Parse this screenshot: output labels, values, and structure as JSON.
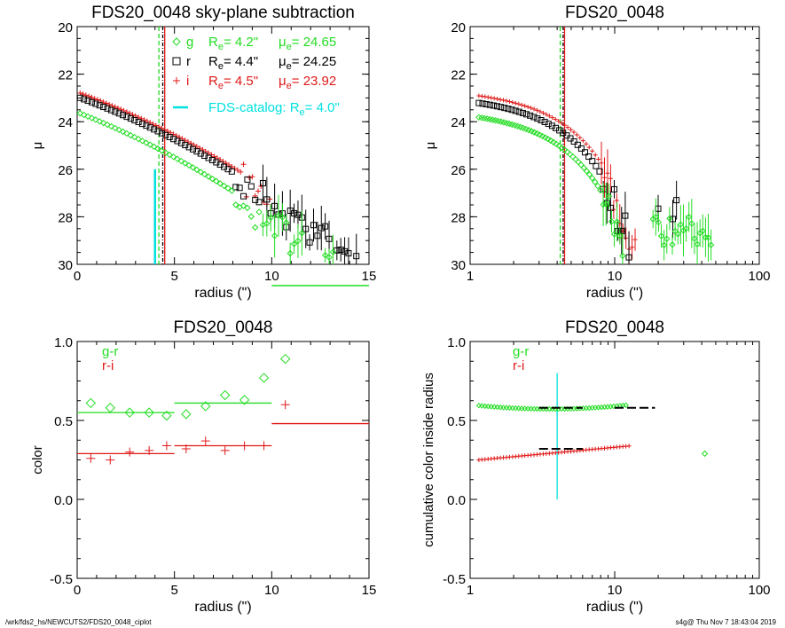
{
  "colors": {
    "g": "#22dd22",
    "r": "#000000",
    "i": "#e01818",
    "catalog": "#00e0e0",
    "axis": "#000000"
  },
  "footer": {
    "left": "/wrk/fds2_hs/NEWCUTS2/FDS20_0048_ciplot",
    "right": "s4g@  Thu Nov  7 18:43:04 2019"
  },
  "chart_data": [
    {
      "id": "p1",
      "type": "scatter",
      "title": "FDS20_0048 sky-plane subtraction",
      "xlabel": "radius (\")",
      "ylabel": "μ",
      "xscale": "linear",
      "xlim": [
        0,
        15
      ],
      "ylim": [
        30,
        20
      ],
      "xticks": [
        0,
        5,
        10,
        15
      ],
      "yticks": [
        20,
        22,
        24,
        26,
        28,
        30
      ],
      "legend": [
        {
          "band": "g",
          "marker": "diamond",
          "re_label": "R",
          "re_sub": "e",
          "re_value": "=  4.2\"",
          "mu_label": "μ",
          "mu_sub": "e",
          "mu_value": "= 24.65"
        },
        {
          "band": "r",
          "marker": "square",
          "re_label": "R",
          "re_sub": "e",
          "re_value": "=  4.4\"",
          "mu_label": "μ",
          "mu_sub": "e",
          "mu_value": "= 24.25"
        },
        {
          "band": "i",
          "marker": "plus",
          "re_label": "R",
          "re_sub": "e",
          "re_value": "=  4.5\"",
          "mu_label": "μ",
          "mu_sub": "e",
          "mu_value": "= 23.92"
        }
      ],
      "catalog_label": "FDS-catalog: R",
      "catalog_sub": "e",
      "catalog_value": "=  4.0\"",
      "re_lines": {
        "g": 4.2,
        "r": 4.4,
        "i": 4.5,
        "catalog": 4.0
      },
      "series": [
        {
          "band": "i",
          "marker": "plus",
          "x_start": 0.15,
          "x_step": 0.15,
          "count": 66,
          "y_start": 22.75,
          "y_slope": 0.3,
          "noise_after": 8.5,
          "errbars_after": 10.0
        },
        {
          "band": "r",
          "marker": "square",
          "x_start": 0.15,
          "x_step": 0.2,
          "count": 75,
          "y_start": 22.95,
          "y_slope": 0.3,
          "noise_after": 8.0,
          "errbars_after": 9.5
        },
        {
          "band": "g",
          "marker": "diamond",
          "x_start": 0.15,
          "x_step": 0.2,
          "count": 66,
          "y_start": 23.6,
          "y_slope": 0.32,
          "noise_after": 8.0,
          "errbars_after": 9.5
        }
      ]
    },
    {
      "id": "p2",
      "type": "scatter",
      "title": "FDS20_0048",
      "xlabel": "radius (\")",
      "ylabel": "μ",
      "xscale": "log",
      "xlim": [
        1,
        100
      ],
      "ylim": [
        30,
        20
      ],
      "xticks": [
        1,
        10,
        100
      ],
      "yticks": [
        20,
        22,
        24,
        26,
        28,
        30
      ],
      "re_lines": {
        "g": 4.2,
        "r": 4.4,
        "i": 4.5
      },
      "series": [
        {
          "band": "i",
          "marker": "plus",
          "x_start": 1.15,
          "x_factor": 1.05,
          "x_max": 14,
          "y_start": 22.85,
          "y_slope": 0.3
        },
        {
          "band": "r",
          "marker": "square",
          "x_start": 1.15,
          "x_factor": 1.06,
          "x_max": 40,
          "y_start": 23.15,
          "y_slope": 0.32
        },
        {
          "band": "g",
          "marker": "diamond",
          "x_start": 1.15,
          "x_factor": 1.045,
          "x_max": 48,
          "y_start": 23.75,
          "y_slope": 0.34
        }
      ]
    },
    {
      "id": "p3",
      "type": "scatter",
      "title": "FDS20_0048",
      "xlabel": "radius (\")",
      "ylabel": "color",
      "xscale": "linear",
      "xlim": [
        0,
        15
      ],
      "ylim": [
        -0.5,
        1.0
      ],
      "xticks": [
        0,
        5,
        10,
        15
      ],
      "yticks": [
        -0.5,
        0.0,
        0.5,
        1.0
      ],
      "legend_labels": [
        "g-r",
        "r-i"
      ],
      "gr": {
        "x": [
          0.7,
          1.7,
          2.7,
          3.7,
          4.6,
          5.6,
          6.6,
          7.6,
          8.6,
          9.6,
          10.7
        ],
        "y": [
          0.61,
          0.58,
          0.55,
          0.55,
          0.53,
          0.54,
          0.59,
          0.66,
          0.63,
          0.77,
          0.89
        ]
      },
      "ri": {
        "x": [
          0.7,
          1.7,
          2.7,
          3.7,
          4.6,
          5.6,
          6.6,
          7.6,
          8.6,
          9.6,
          10.7
        ],
        "y": [
          0.26,
          0.25,
          0.3,
          0.31,
          0.34,
          0.32,
          0.37,
          0.31,
          0.34,
          0.34,
          0.6
        ]
      },
      "segments": [
        {
          "band": "g",
          "x": [
            0,
            5
          ],
          "y": 0.55
        },
        {
          "band": "g",
          "x": [
            5,
            10
          ],
          "y": 0.61
        },
        {
          "band": "i",
          "x": [
            0,
            5
          ],
          "y": 0.29
        },
        {
          "band": "i",
          "x": [
            5,
            10
          ],
          "y": 0.34
        },
        {
          "band": "i",
          "x": [
            10,
            15
          ],
          "y": 0.48
        }
      ]
    },
    {
      "id": "p4",
      "type": "scatter",
      "title": "FDS20_0048",
      "xlabel": "radius (\")",
      "ylabel": "cumulative color inside radius",
      "xscale": "log",
      "xlim": [
        1,
        100
      ],
      "ylim": [
        -0.5,
        1.0
      ],
      "xticks": [
        1,
        10,
        100
      ],
      "yticks": [
        -0.5,
        0.0,
        0.5,
        1.0
      ],
      "legend_labels": [
        "g-r",
        "r-i"
      ],
      "catalog_x": 4.0,
      "catalog_yrange": [
        0.0,
        0.8
      ],
      "gr_curve": {
        "x_start": 1.15,
        "x_factor": 1.05,
        "x_max": 12,
        "y_start": 0.6,
        "y_min": 0.57,
        "y_end": 0.58
      },
      "ri_curve": {
        "x_start": 1.15,
        "x_factor": 1.05,
        "x_max": 13,
        "y_start": 0.245,
        "y_end": 0.33
      },
      "outlier": {
        "x": 42,
        "y": 0.29
      },
      "dashed_segments": [
        {
          "x": [
            3.0,
            6.0
          ],
          "y": 0.58
        },
        {
          "x": [
            10.0,
            19.0
          ],
          "y": 0.58
        },
        {
          "x": [
            3.0,
            6.0
          ],
          "y": 0.32
        }
      ]
    }
  ]
}
